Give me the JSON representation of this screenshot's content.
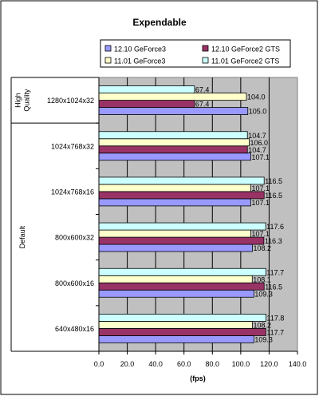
{
  "chart_data": {
    "type": "bar",
    "orientation": "horizontal",
    "title": "Expendable",
    "xlabel": "(fps)",
    "xlim": [
      0,
      140
    ],
    "xticks": [
      "0.0",
      "20.0",
      "40.0",
      "60.0",
      "80.0",
      "100.0",
      "120.0",
      "140.0"
    ],
    "grid": true,
    "legend_position": "top",
    "groups": [
      {
        "name": "High Quality",
        "categories": [
          "1280x1024x32"
        ]
      },
      {
        "name": "Default",
        "categories": [
          "1024x768x32",
          "1024x768x16",
          "800x600x32",
          "800x600x16",
          "640x480x16"
        ]
      }
    ],
    "categories": [
      "1280x1024x32",
      "1024x768x32",
      "1024x768x16",
      "800x600x32",
      "800x600x16",
      "640x480x16"
    ],
    "series": [
      {
        "name": "12.10 GeForce3",
        "color": "#9999ff",
        "values": [
          105.0,
          107.1,
          107.1,
          108.2,
          109.3,
          109.3
        ],
        "labels": [
          "105.0",
          "107.1",
          "107.1",
          "108.2",
          "109.3",
          "109.3"
        ]
      },
      {
        "name": "12.10 GeForce2 GTS",
        "color": "#993366",
        "values": [
          67.4,
          104.7,
          116.5,
          116.3,
          116.5,
          117.7
        ],
        "labels": [
          "67.4",
          "104.7",
          "116.5",
          "116.3",
          "116.5",
          "117.7"
        ]
      },
      {
        "name": "11.01 GeForce3",
        "color": "#ffffcc",
        "values": [
          104.0,
          106.0,
          107.1,
          107.1,
          108.1,
          108.2
        ],
        "labels": [
          "104.0",
          "106.0",
          "107.1",
          "107.1",
          "108.1",
          "108.2"
        ]
      },
      {
        "name": "11.01 GeForce2 GTS",
        "color": "#ccffff",
        "values": [
          67.4,
          104.7,
          116.5,
          117.6,
          117.7,
          117.8
        ],
        "labels": [
          "67.4",
          "104.7",
          "116.5",
          "117.6",
          "117.7",
          "117.8"
        ]
      }
    ],
    "legend": [
      {
        "name": "12.10 GeForce3",
        "color": "#9999ff"
      },
      {
        "name": "12.10 GeForce2 GTS",
        "color": "#993366"
      },
      {
        "name": "11.01 GeForce3",
        "color": "#ffffcc"
      },
      {
        "name": "11.01 GeForce2 GTS",
        "color": "#ccffff"
      }
    ]
  }
}
